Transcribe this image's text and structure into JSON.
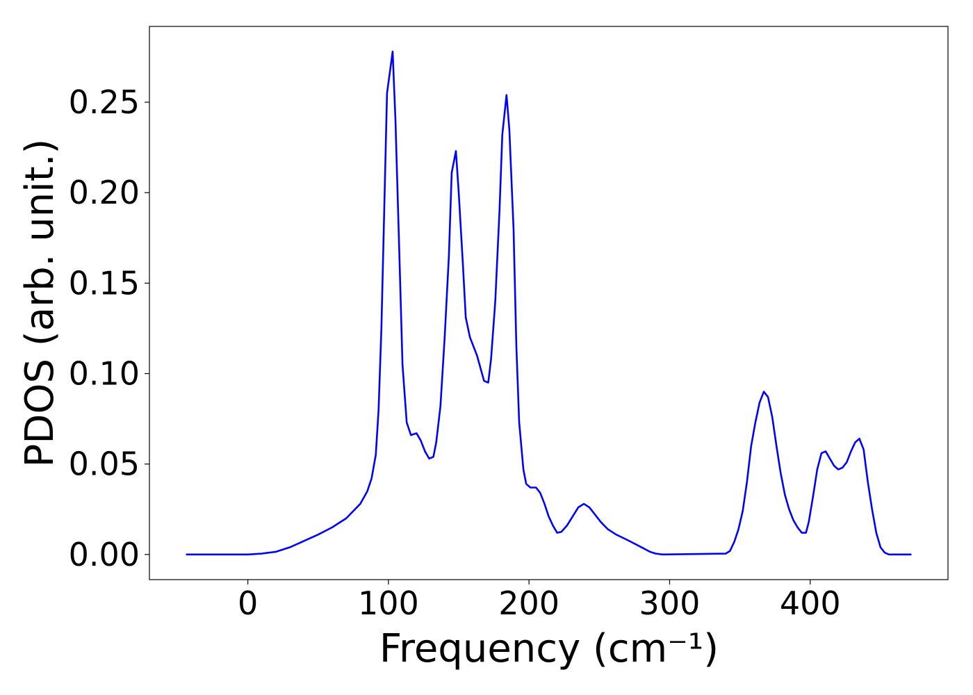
{
  "chart_data": {
    "type": "line",
    "x_label": "Frequency (cm⁻¹)",
    "y_label": "PDOS (arb. unit.)",
    "color": "#0000ff",
    "x": [
      -44,
      0,
      10,
      20,
      30,
      40,
      50,
      60,
      70,
      80,
      85,
      88,
      91,
      93,
      95,
      97,
      99,
      103,
      105,
      108,
      110,
      113,
      116,
      120,
      123,
      126,
      129,
      132,
      134,
      137,
      140,
      143,
      145,
      148,
      150,
      153,
      155,
      158,
      163,
      168,
      171,
      173,
      176,
      179,
      181,
      184,
      186,
      189,
      191,
      193,
      196,
      198,
      201,
      205,
      208,
      211,
      214,
      217,
      220,
      223,
      227,
      231,
      235,
      239,
      243,
      247,
      251,
      256,
      262,
      270,
      280,
      286,
      290,
      295,
      340,
      343,
      346,
      349,
      352,
      355,
      358,
      361,
      364,
      367,
      370,
      373,
      376,
      379,
      382,
      385,
      388,
      391,
      394,
      397,
      399,
      402,
      405,
      408,
      411,
      414,
      417,
      420,
      423,
      426,
      429,
      432,
      435,
      438,
      441,
      444,
      447,
      450,
      453,
      456,
      472
    ],
    "values": [
      0,
      0,
      0.0005,
      0.0015,
      0.004,
      0.0075,
      0.011,
      0.015,
      0.02,
      0.028,
      0.035,
      0.042,
      0.055,
      0.08,
      0.125,
      0.19,
      0.255,
      0.278,
      0.24,
      0.16,
      0.105,
      0.073,
      0.066,
      0.067,
      0.063,
      0.057,
      0.053,
      0.054,
      0.062,
      0.082,
      0.12,
      0.165,
      0.211,
      0.223,
      0.2,
      0.16,
      0.131,
      0.12,
      0.11,
      0.096,
      0.095,
      0.108,
      0.14,
      0.19,
      0.232,
      0.254,
      0.235,
      0.18,
      0.115,
      0.073,
      0.047,
      0.039,
      0.037,
      0.037,
      0.034,
      0.028,
      0.021,
      0.016,
      0.012,
      0.0125,
      0.016,
      0.021,
      0.026,
      0.028,
      0.026,
      0.022,
      0.018,
      0.014,
      0.011,
      0.008,
      0.004,
      0.0015,
      0.0005,
      0,
      0.0005,
      0.002,
      0.007,
      0.014,
      0.024,
      0.04,
      0.06,
      0.073,
      0.084,
      0.09,
      0.087,
      0.076,
      0.06,
      0.045,
      0.033,
      0.025,
      0.019,
      0.015,
      0.012,
      0.012,
      0.018,
      0.032,
      0.047,
      0.056,
      0.057,
      0.053,
      0.049,
      0.047,
      0.048,
      0.051,
      0.057,
      0.062,
      0.064,
      0.058,
      0.04,
      0.025,
      0.012,
      0.004,
      0.001,
      0,
      0
    ],
    "xlim": [
      -70,
      498
    ],
    "ylim": [
      -0.0139,
      0.2919
    ],
    "xticks": [
      0,
      100,
      200,
      300,
      400
    ],
    "yticks": [
      {
        "value": 0,
        "label": "0.00"
      },
      {
        "value": 0.05,
        "label": "0.05"
      },
      {
        "value": 0.1,
        "label": "0.10"
      },
      {
        "value": 0.15,
        "label": "0.15"
      },
      {
        "value": 0.2,
        "label": "0.20"
      },
      {
        "value": 0.25,
        "label": "0.25"
      }
    ]
  }
}
